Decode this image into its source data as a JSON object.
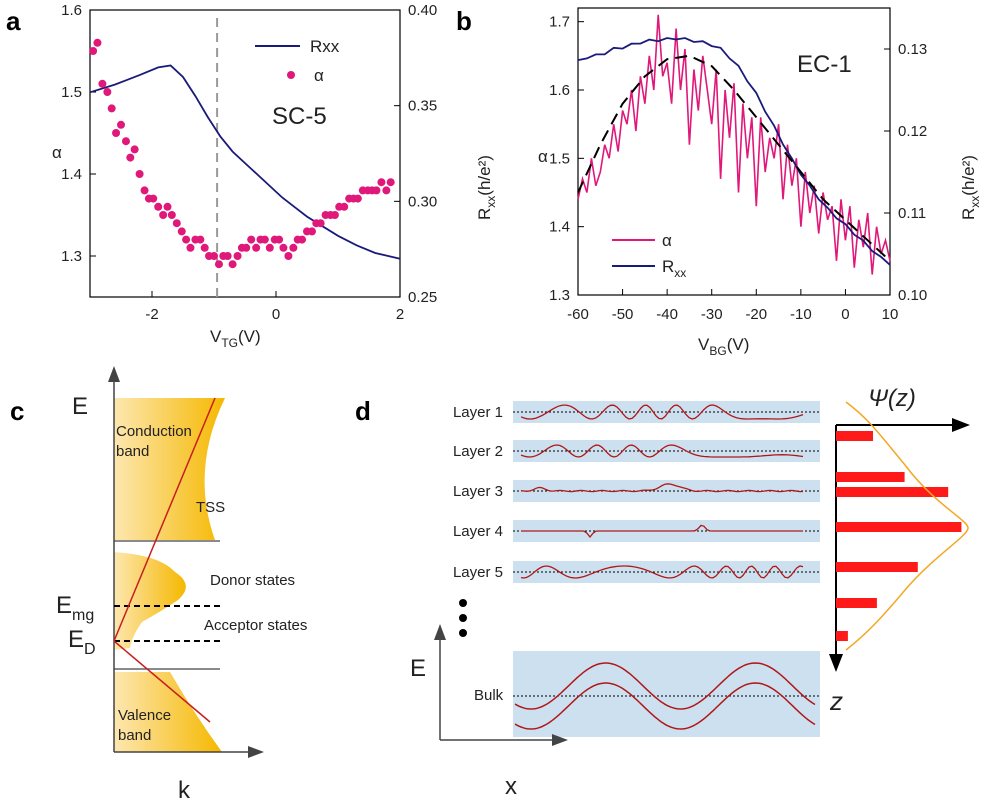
{
  "panel_labels": {
    "a": "a",
    "b": "b",
    "c": "c",
    "d": "d"
  },
  "colors": {
    "rxx": "#1a1a7a",
    "alpha": "#e0187a",
    "band_fill": "#f5b800",
    "tss": "#c81e1e",
    "layer_bg": "#cce0ef",
    "wave": "#b01818",
    "bar": "#ff1a1a",
    "envelope": "#f5a623"
  },
  "panel_a": {
    "legend_rxx": "Rxx",
    "legend_alpha": "α",
    "sample": "SC-5",
    "xlabel_main": "V",
    "xlabel_sub": "TG",
    "xlabel_unit": "(V)",
    "ylabel_left": "α"
  },
  "panel_b": {
    "sample": "EC-1",
    "legend_alpha": "α",
    "legend_rxx_main": "R",
    "legend_rxx_sub": "xx",
    "xlabel_main": "V",
    "xlabel_sub": "BG",
    "xlabel_unit": "(V)",
    "ylabel_left": "α",
    "ylabel_right_main": "R",
    "ylabel_right_sub": "xx",
    "ylabel_right_unit": "(h/e²)"
  },
  "chart_data": [
    {
      "type": "line",
      "panel": "a",
      "xlim": [
        -3,
        2
      ],
      "ylim": [
        1.25,
        1.6
      ],
      "y2lim": [
        0.25,
        0.4
      ],
      "xticks": [
        "-2",
        "0",
        "2"
      ],
      "yticks": [
        "1.3",
        "1.4",
        "1.5",
        "1.6"
      ],
      "y2ticks": [
        "0.25",
        "0.30",
        "0.35",
        "0.40"
      ],
      "vline_x": -0.95,
      "series": [
        {
          "name": "Rxx",
          "axis": "right",
          "style": "line",
          "x": [
            -3,
            -2.6,
            -2.2,
            -1.9,
            -1.7,
            -1.5,
            -1.3,
            -1.1,
            -0.9,
            -0.7,
            -0.5,
            -0.3,
            -0.1,
            0.1,
            0.3,
            0.5,
            0.7,
            1.0,
            1.3,
            1.6,
            2.0
          ],
          "y": [
            0.357,
            0.361,
            0.366,
            0.37,
            0.371,
            0.365,
            0.355,
            0.344,
            0.334,
            0.326,
            0.32,
            0.314,
            0.308,
            0.302,
            0.297,
            0.292,
            0.288,
            0.282,
            0.277,
            0.273,
            0.27
          ]
        },
        {
          "name": "α",
          "axis": "left",
          "style": "scatter",
          "x": [
            -2.95,
            -2.88,
            -2.8,
            -2.72,
            -2.65,
            -2.58,
            -2.5,
            -2.42,
            -2.35,
            -2.28,
            -2.2,
            -2.12,
            -2.05,
            -1.98,
            -1.9,
            -1.82,
            -1.75,
            -1.68,
            -1.6,
            -1.52,
            -1.45,
            -1.38,
            -1.3,
            -1.22,
            -1.15,
            -1.08,
            -1.0,
            -0.92,
            -0.85,
            -0.78,
            -0.7,
            -0.62,
            -0.55,
            -0.48,
            -0.4,
            -0.32,
            -0.25,
            -0.18,
            -0.1,
            -0.02,
            0.05,
            0.12,
            0.2,
            0.28,
            0.35,
            0.42,
            0.5,
            0.58,
            0.65,
            0.72,
            0.8,
            0.88,
            0.95,
            1.02,
            1.1,
            1.18,
            1.25,
            1.32,
            1.4,
            1.48,
            1.55,
            1.62,
            1.7,
            1.78,
            1.85
          ],
          "y": [
            1.55,
            1.56,
            1.51,
            1.5,
            1.48,
            1.45,
            1.46,
            1.44,
            1.42,
            1.43,
            1.4,
            1.38,
            1.37,
            1.37,
            1.36,
            1.35,
            1.36,
            1.35,
            1.34,
            1.33,
            1.32,
            1.31,
            1.32,
            1.32,
            1.31,
            1.3,
            1.3,
            1.29,
            1.3,
            1.3,
            1.29,
            1.3,
            1.31,
            1.31,
            1.32,
            1.31,
            1.32,
            1.32,
            1.31,
            1.32,
            1.32,
            1.31,
            1.3,
            1.31,
            1.32,
            1.32,
            1.33,
            1.33,
            1.34,
            1.34,
            1.35,
            1.35,
            1.35,
            1.36,
            1.36,
            1.37,
            1.37,
            1.37,
            1.38,
            1.38,
            1.38,
            1.38,
            1.39,
            1.38,
            1.39
          ]
        }
      ]
    },
    {
      "type": "line",
      "panel": "b",
      "xlim": [
        -60,
        10
      ],
      "ylim": [
        1.3,
        1.72
      ],
      "y2lim": [
        0.1,
        0.135
      ],
      "xticks": [
        "-60",
        "-50",
        "-40",
        "-30",
        "-20",
        "-10",
        "0",
        "10"
      ],
      "yticks": [
        "1.3",
        "1.4",
        "1.5",
        "1.6",
        "1.7"
      ],
      "y2ticks": [
        "0.10",
        "0.11",
        "0.12",
        "0.13"
      ],
      "series": [
        {
          "name": "α",
          "axis": "left",
          "style": "line",
          "x": [
            -60,
            -59,
            -58,
            -57,
            -56,
            -55,
            -54,
            -53,
            -52,
            -51,
            -50,
            -49,
            -48,
            -47,
            -46,
            -45,
            -44,
            -43,
            -42,
            -41,
            -40,
            -39,
            -38,
            -37,
            -36,
            -35,
            -34,
            -33,
            -32,
            -31,
            -30,
            -29,
            -28,
            -27,
            -26,
            -25,
            -24,
            -23,
            -22,
            -21,
            -20,
            -19,
            -18,
            -17,
            -16,
            -15,
            -14,
            -13,
            -12,
            -11,
            -10,
            -9,
            -8,
            -7,
            -6,
            -5,
            -4,
            -3,
            -2,
            -1,
            0,
            1,
            2,
            3,
            4,
            5,
            6,
            7,
            8,
            9,
            10
          ],
          "y": [
            1.44,
            1.47,
            1.45,
            1.5,
            1.46,
            1.48,
            1.52,
            1.5,
            1.55,
            1.51,
            1.57,
            1.55,
            1.6,
            1.54,
            1.62,
            1.58,
            1.65,
            1.6,
            1.71,
            1.62,
            1.64,
            1.58,
            1.69,
            1.6,
            1.66,
            1.52,
            1.63,
            1.57,
            1.65,
            1.6,
            1.55,
            1.63,
            1.47,
            1.6,
            1.53,
            1.61,
            1.45,
            1.58,
            1.5,
            1.56,
            1.43,
            1.56,
            1.48,
            1.53,
            1.5,
            1.55,
            1.44,
            1.52,
            1.46,
            1.5,
            1.4,
            1.48,
            1.42,
            1.46,
            1.39,
            1.45,
            1.41,
            1.43,
            1.35,
            1.44,
            1.38,
            1.43,
            1.34,
            1.41,
            1.37,
            1.42,
            1.33,
            1.4,
            1.36,
            1.38,
            1.35
          ]
        },
        {
          "name": "Rxx",
          "axis": "right",
          "style": "line",
          "x": [
            -60,
            -58,
            -56,
            -54,
            -52,
            -50,
            -48,
            -46,
            -44,
            -42,
            -40,
            -38,
            -36,
            -34,
            -32,
            -30,
            -28,
            -26,
            -24,
            -22,
            -20,
            -18,
            -16,
            -14,
            -12,
            -10,
            -8,
            -6,
            -4,
            -2,
            0,
            2,
            4,
            6,
            8,
            10
          ],
          "y": [
            0.1285,
            0.129,
            0.1292,
            0.1295,
            0.13,
            0.1302,
            0.1305,
            0.1308,
            0.131,
            0.1311,
            0.1312,
            0.1313,
            0.1312,
            0.131,
            0.1308,
            0.1305,
            0.13,
            0.129,
            0.1278,
            0.1262,
            0.1245,
            0.1225,
            0.1205,
            0.1185,
            0.1165,
            0.1148,
            0.1132,
            0.1118,
            0.1105,
            0.1095,
            0.1085,
            0.1075,
            0.1065,
            0.1055,
            0.1045,
            0.1038
          ]
        },
        {
          "name": "",
          "axis": "left",
          "style": "dashed",
          "x": [
            -60,
            -55,
            -50,
            -45,
            -40,
            -35,
            -30,
            -25,
            -20,
            -15,
            -10,
            -5,
            0,
            5,
            10
          ],
          "y": [
            1.45,
            1.52,
            1.58,
            1.62,
            1.645,
            1.65,
            1.635,
            1.6,
            1.56,
            1.52,
            1.48,
            1.44,
            1.41,
            1.38,
            1.35
          ]
        }
      ]
    },
    {
      "type": "bar",
      "panel": "d",
      "orientation": "horizontal",
      "categories": [
        "Layer 1",
        "Layer 2",
        "Layer 3",
        "Layer 4",
        "Layer 5",
        "",
        ""
      ],
      "values": [
        0.28,
        0.52,
        0.85,
        0.95,
        0.62,
        0.31,
        0.09
      ]
    }
  ],
  "panel_c": {
    "energy_axis": "E",
    "momentum_axis": "k",
    "conduction": "Conduction band",
    "conduction_line1": "Conduction",
    "conduction_line2": "band",
    "valence_line1": "Valence",
    "valence_line2": "band",
    "tss": "TSS",
    "donor": "Donor states",
    "acceptor": "Acceptor states",
    "emg_main": "E",
    "emg_sub": "mg",
    "ed_main": "E",
    "ed_sub": "D"
  },
  "panel_d": {
    "layers": [
      "Layer 1",
      "Layer 2",
      "Layer 3",
      "Layer 4",
      "Layer 5"
    ],
    "bulk": "Bulk",
    "energy_axis": "E",
    "x_axis": "x",
    "psi": "Ψ(z)",
    "z_axis": "z"
  }
}
